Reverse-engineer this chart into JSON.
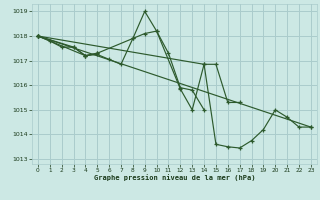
{
  "bg_color": "#cce8e4",
  "grid_color": "#aacccc",
  "line_color": "#2d5a2d",
  "title": "Graphe pression niveau de la mer (hPa)",
  "xlim": [
    -0.5,
    23.5
  ],
  "ylim": [
    1012.8,
    1019.3
  ],
  "xticks": [
    0,
    1,
    2,
    3,
    4,
    5,
    6,
    7,
    8,
    9,
    10,
    11,
    12,
    13,
    14,
    15,
    16,
    17,
    18,
    19,
    20,
    21,
    22,
    23
  ],
  "yticks": [
    1013,
    1014,
    1015,
    1016,
    1017,
    1018,
    1019
  ],
  "series": [
    {
      "x": [
        0,
        1,
        2,
        3,
        4,
        5
      ],
      "y": [
        1018.0,
        1017.8,
        1017.55,
        1017.55,
        1017.2,
        1017.3
      ]
    },
    {
      "x": [
        0,
        3,
        4,
        5,
        6,
        7,
        8,
        9,
        10,
        11,
        12,
        13,
        14
      ],
      "y": [
        1018.0,
        1017.55,
        1017.2,
        1017.25,
        1017.05,
        1016.85,
        1017.9,
        1018.1,
        1018.2,
        1017.3,
        1015.9,
        1015.8,
        1015.0
      ]
    },
    {
      "x": [
        0,
        4,
        5,
        8,
        9,
        10,
        12,
        13,
        14,
        15,
        16,
        17
      ],
      "y": [
        1018.0,
        1017.2,
        1017.3,
        1017.9,
        1019.0,
        1018.2,
        1015.85,
        1015.0,
        1016.85,
        1016.85,
        1015.3,
        1015.3
      ]
    },
    {
      "x": [
        0,
        14,
        15,
        16,
        17,
        18,
        19,
        20,
        21,
        22,
        23
      ],
      "y": [
        1018.0,
        1016.85,
        1013.6,
        1013.5,
        1013.45,
        1013.75,
        1014.2,
        1015.0,
        1014.7,
        1014.3,
        1014.3
      ]
    },
    {
      "x": [
        0,
        23
      ],
      "y": [
        1018.0,
        1014.3
      ]
    }
  ]
}
